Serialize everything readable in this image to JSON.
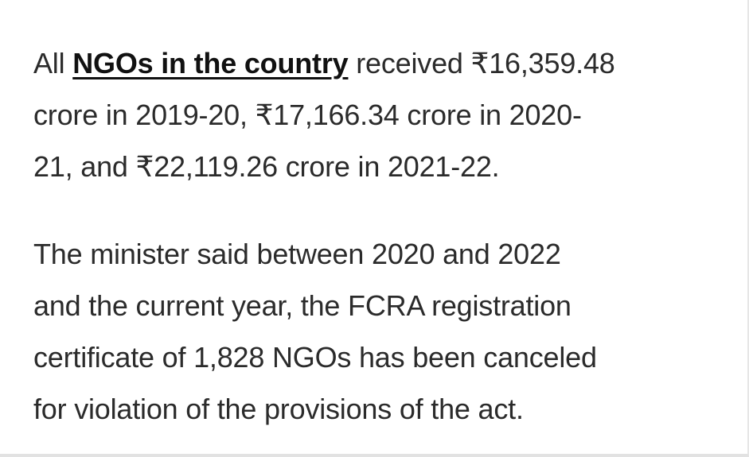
{
  "article": {
    "paragraph1": {
      "line1_prefix": "All ",
      "link_text": "NGOs in the country",
      "line1_suffix": " received ₹16,359.48",
      "line2": "crore in 2019-20, ₹17,166.34 crore in 2020-",
      "line3": "21, and ₹22,119.26 crore in 2021-22."
    },
    "paragraph2": {
      "line1": "The minister said between 2020 and 2022",
      "line2": "and the current year, the FCRA registration",
      "line3": "certificate of 1,828 NGOs has been canceled",
      "line4": "for violation of the provisions of the act."
    }
  },
  "colors": {
    "text": "#2b2b2b",
    "link": "#111111",
    "background": "#ffffff"
  }
}
